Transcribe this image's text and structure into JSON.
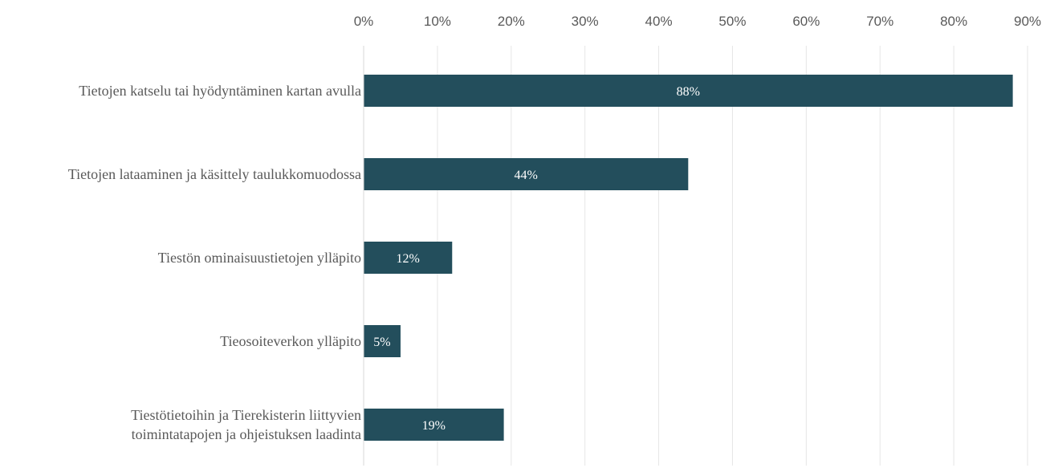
{
  "chart_data": {
    "type": "bar",
    "orientation": "horizontal",
    "title": "",
    "xlabel": "",
    "ylabel": "",
    "xlim": [
      0,
      90
    ],
    "x_ticks": [
      "0%",
      "10%",
      "20%",
      "30%",
      "40%",
      "50%",
      "60%",
      "70%",
      "80%",
      "90%"
    ],
    "tick_axis_position": "top",
    "grid": true,
    "legend": "none",
    "bar_color": "#234e5c",
    "categories": [
      [
        "Tietojen katselu tai hyödyntäminen kartan avulla"
      ],
      [
        "Tietojen lataaminen ja käsittely taulukkomuodossa"
      ],
      [
        "Tiestön ominaisuustietojen ylläpito"
      ],
      [
        "Tieosoiteverkon ylläpito"
      ],
      [
        "Tiestötietoihin ja Tierekisterin liittyvien",
        "toimintatapojen ja ohjeistuksen laadinta"
      ]
    ],
    "values": [
      88,
      44,
      12,
      5,
      19
    ],
    "data_labels": [
      "88%",
      "44%",
      "12%",
      "5%",
      "19%"
    ]
  }
}
